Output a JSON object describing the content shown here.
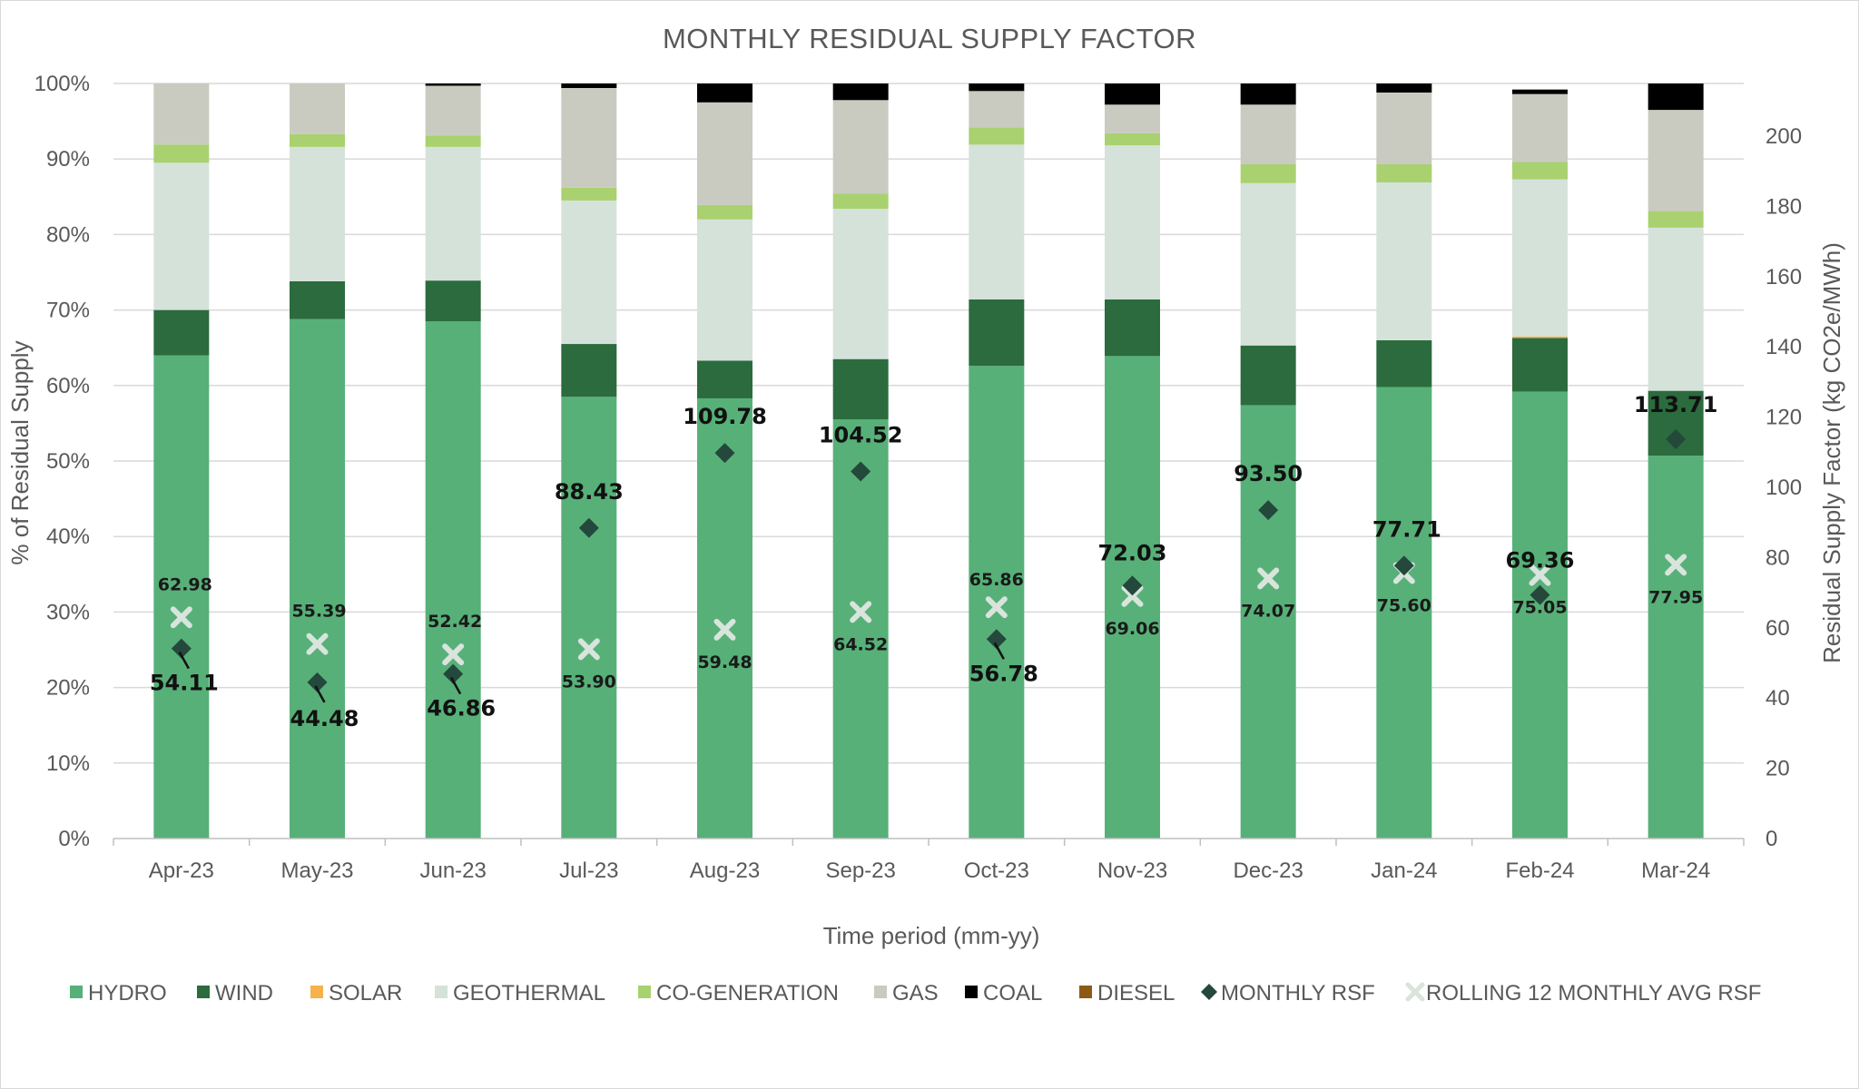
{
  "chart_data": {
    "type": "bar",
    "stacked": true,
    "title": "MONTHLY RESIDUAL SUPPLY FACTOR",
    "xlabel": "Time period (mm-yy)",
    "ylabel": "% of Residual Supply",
    "y2label": "Residual Supply Factor (kg CO2e/MWh)",
    "ylim": [
      0,
      100
    ],
    "y2lim": [
      0,
      215
    ],
    "yticks": [
      "0%",
      "10%",
      "20%",
      "30%",
      "40%",
      "50%",
      "60%",
      "70%",
      "80%",
      "90%",
      "100%"
    ],
    "y2ticks": [
      0,
      20,
      40,
      60,
      80,
      100,
      120,
      140,
      160,
      180,
      200
    ],
    "categories": [
      "Apr-23",
      "May-23",
      "Jun-23",
      "Jul-23",
      "Aug-23",
      "Sep-23",
      "Oct-23",
      "Nov-23",
      "Dec-23",
      "Jan-24",
      "Feb-24",
      "Mar-24"
    ],
    "series": [
      {
        "name": "HYDRO",
        "key": "hydro",
        "color": "#57b078",
        "values": [
          64.0,
          68.8,
          68.5,
          58.5,
          58.3,
          55.5,
          62.6,
          63.9,
          57.4,
          59.8,
          59.2,
          50.7
        ]
      },
      {
        "name": "WIND",
        "key": "wind",
        "color": "#2b6b3e",
        "values": [
          6.0,
          5.0,
          5.4,
          7.0,
          5.0,
          8.0,
          8.8,
          7.5,
          7.9,
          6.2,
          7.1,
          8.6
        ]
      },
      {
        "name": "SOLAR",
        "key": "solar",
        "color": "#f6b24b",
        "values": [
          0.0,
          0.0,
          0.0,
          0.0,
          0.0,
          0.0,
          0.0,
          0.0,
          0.0,
          0.0,
          0.2,
          0.0
        ]
      },
      {
        "name": "GEOTHERMAL",
        "key": "geothermal",
        "color": "#d5e2da",
        "values": [
          19.5,
          17.8,
          17.7,
          19.0,
          18.7,
          19.9,
          20.5,
          20.4,
          21.5,
          20.9,
          20.8,
          21.6
        ]
      },
      {
        "name": "CO-GENERATION",
        "key": "cogeneration",
        "color": "#a9d16f",
        "values": [
          2.4,
          1.7,
          1.5,
          1.7,
          1.9,
          2.0,
          2.3,
          1.6,
          2.5,
          2.4,
          2.3,
          2.2
        ]
      },
      {
        "name": "GAS",
        "key": "gas",
        "color": "#c9cbc0",
        "values": [
          8.1,
          6.7,
          6.6,
          13.2,
          13.6,
          12.4,
          4.8,
          3.8,
          7.9,
          9.5,
          9.0,
          13.4
        ]
      },
      {
        "name": "COAL",
        "key": "coal",
        "color": "#000000",
        "values": [
          0.0,
          0.0,
          0.3,
          0.6,
          2.5,
          2.2,
          1.0,
          2.8,
          2.8,
          1.2,
          0.6,
          3.5
        ]
      },
      {
        "name": "DIESEL",
        "key": "diesel",
        "color": "#8c5a14",
        "values": [
          0.0,
          0.0,
          0.0,
          0.0,
          0.0,
          0.0,
          0.0,
          0.0,
          0.0,
          0.0,
          0.0,
          0.0
        ]
      }
    ],
    "lines": [
      {
        "name": "MONTHLY RSF",
        "key": "monthly",
        "color": "#24483c",
        "axis": "right",
        "marker": "diamond",
        "values": [
          54.11,
          44.48,
          46.86,
          88.43,
          109.78,
          104.52,
          56.78,
          72.03,
          93.5,
          77.71,
          69.36,
          113.71
        ],
        "labels": [
          "54.11",
          "44.48",
          "46.86",
          "88.43",
          "109.78",
          "104.52",
          "56.78",
          "72.03",
          "93.50",
          "77.71",
          "69.36",
          "113.71"
        ]
      },
      {
        "name": "ROLLING 12 MONTHLY AVG RSF",
        "key": "rolling",
        "color": "#d8e4dc",
        "axis": "right",
        "marker": "x",
        "values": [
          62.98,
          55.39,
          52.42,
          53.9,
          59.48,
          64.52,
          65.86,
          69.06,
          74.07,
          75.6,
          75.05,
          77.95
        ],
        "labels": [
          "62.98",
          "55.39",
          "52.42",
          "53.90",
          "59.48",
          "64.52",
          "65.86",
          "69.06",
          "74.07",
          "75.60",
          "75.05",
          "77.95"
        ]
      }
    ],
    "legend_position": "bottom",
    "legend": [
      "HYDRO",
      "WIND",
      "SOLAR",
      "GEOTHERMAL",
      "CO-GENERATION",
      "GAS",
      "COAL",
      "DIESEL",
      "MONTHLY RSF",
      "ROLLING 12 MONTHLY AVG RSF"
    ]
  }
}
